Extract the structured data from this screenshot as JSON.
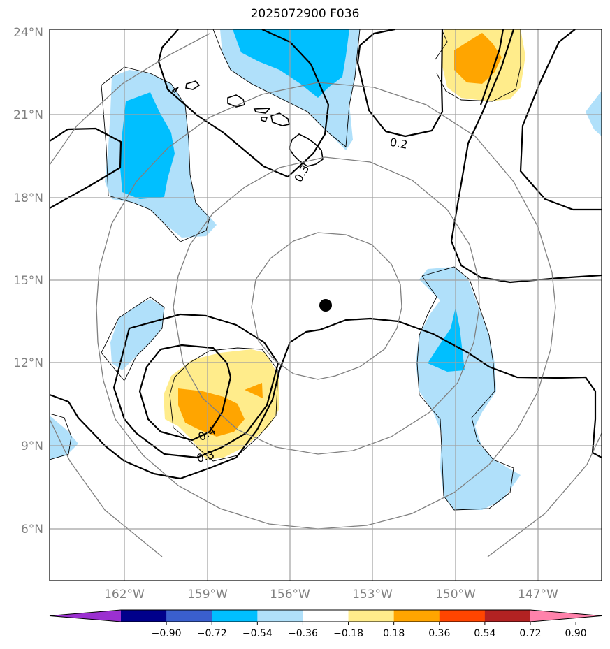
{
  "title": "2025072900 F036",
  "lat_labels": [
    "24°N",
    "21°N",
    "18°N",
    "15°N",
    "12°N",
    "9°N",
    "6°N"
  ],
  "lon_labels": [
    "162°W",
    "159°W",
    "156°W",
    "153°W",
    "150°W",
    "147°W"
  ],
  "colorbar": {
    "ticks": [
      "−0.90",
      "−0.72",
      "−0.54",
      "−0.36",
      "−0.18",
      "0.18",
      "0.36",
      "0.54",
      "0.72",
      "0.90"
    ],
    "colors": [
      "#9b30d0",
      "#00008b",
      "#3a5fcd",
      "#00bfff",
      "#b0e0fa",
      "#ffffff",
      "#ffec8b",
      "#ffa500",
      "#ff4500",
      "#b22222",
      "#ff82ab"
    ]
  },
  "contour_labels": [
    "0.2",
    "0.3",
    "0.4",
    "0.3"
  ],
  "center_marker": "storm-center"
}
